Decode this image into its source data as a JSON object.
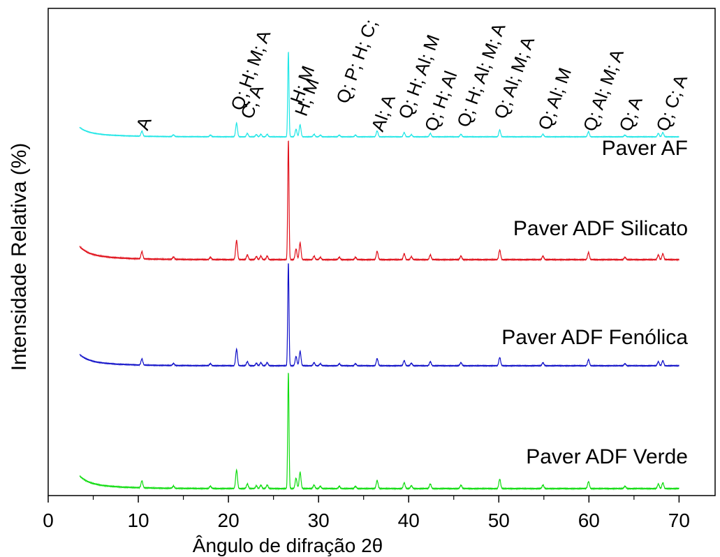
{
  "chart_data": {
    "type": "line",
    "xlabel": "Ângulo de difração 2θ",
    "ylabel": "Intensidade Relativa (%)",
    "xlim": [
      0,
      74
    ],
    "x_ticks": [
      "0",
      "10",
      "20",
      "30",
      "40",
      "50",
      "60",
      "70"
    ],
    "x_tick_values": [
      0,
      10,
      20,
      30,
      40,
      50,
      60,
      70
    ],
    "y_ticks": "none",
    "grid": false,
    "x_range_data": [
      3.5,
      70
    ],
    "peaks": [
      {
        "x": 10.4,
        "h": 0.06
      },
      {
        "x": 13.9,
        "h": 0.02
      },
      {
        "x": 18.0,
        "h": 0.02
      },
      {
        "x": 20.9,
        "h": 0.16
      },
      {
        "x": 22.1,
        "h": 0.04
      },
      {
        "x": 23.1,
        "h": 0.025
      },
      {
        "x": 23.6,
        "h": 0.03
      },
      {
        "x": 24.3,
        "h": 0.03
      },
      {
        "x": 26.65,
        "h": 1.0
      },
      {
        "x": 27.5,
        "h": 0.09
      },
      {
        "x": 27.95,
        "h": 0.14
      },
      {
        "x": 29.5,
        "h": 0.03
      },
      {
        "x": 30.2,
        "h": 0.02
      },
      {
        "x": 32.3,
        "h": 0.02
      },
      {
        "x": 34.1,
        "h": 0.02
      },
      {
        "x": 36.5,
        "h": 0.07
      },
      {
        "x": 39.5,
        "h": 0.05
      },
      {
        "x": 40.3,
        "h": 0.025
      },
      {
        "x": 42.4,
        "h": 0.04
      },
      {
        "x": 45.8,
        "h": 0.03
      },
      {
        "x": 50.1,
        "h": 0.08
      },
      {
        "x": 54.9,
        "h": 0.03
      },
      {
        "x": 59.95,
        "h": 0.06
      },
      {
        "x": 64.0,
        "h": 0.02
      },
      {
        "x": 67.7,
        "h": 0.04
      },
      {
        "x": 68.2,
        "h": 0.05
      }
    ],
    "series": [
      {
        "name": "Paver AF",
        "color": "#1ee6e6"
      },
      {
        "name": "Paver ADF Silicato",
        "color": "#e0101a"
      },
      {
        "name": "Paver ADF Fenólica",
        "color": "#1010c8"
      },
      {
        "name": "Paver ADF Verde",
        "color": "#10dc10"
      }
    ],
    "annotations": [
      {
        "text": "A",
        "x": 10.4
      },
      {
        "text": "Q; H; M; A",
        "x": 20.9
      },
      {
        "text": "C; A",
        "x": 22.0
      },
      {
        "text": "H; M",
        "x": 27.5
      },
      {
        "text": "H; M",
        "x": 28.0
      },
      {
        "text": "Q; P; H; C;",
        "x": 32.6
      },
      {
        "text": "Al; A",
        "x": 36.5
      },
      {
        "text": "Q; H; Al; M",
        "x": 39.5
      },
      {
        "text": "Q; H; Al",
        "x": 42.4
      },
      {
        "text": "Q; H; Al; M; A",
        "x": 46.0
      },
      {
        "text": "Q; Al; M; A",
        "x": 50.1
      },
      {
        "text": "Q; Al; M",
        "x": 55.0
      },
      {
        "text": "Q; Al; M; A",
        "x": 60.0
      },
      {
        "text": "Q; A",
        "x": 64.0
      },
      {
        "text": "Q; C; A",
        "x": 68.1
      }
    ]
  }
}
